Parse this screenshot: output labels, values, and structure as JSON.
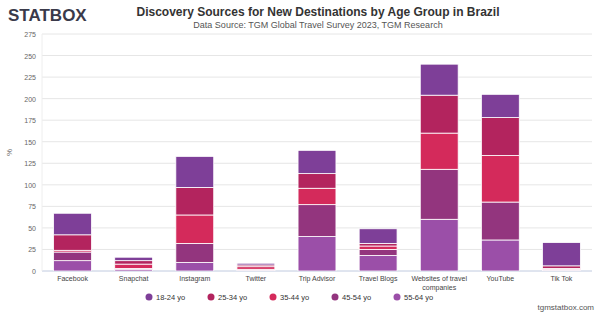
{
  "chart_data": {
    "type": "bar",
    "stacked": true,
    "grid": true,
    "legend": "bottom",
    "title": "Discovery Sources for New Destinations by Age Group in Brazil",
    "subtitle": "Data Source: TGM Global Travel Survey 2023, TGM Research",
    "y_label": "%",
    "categories": [
      "Facebook",
      "Snapchat",
      "Instagram",
      "Twitter",
      "Trip Advisor",
      "Travel Blogs",
      "Websites of travel companies",
      "YouTube",
      "Tik Tok"
    ],
    "ylim": [
      0,
      275
    ],
    "yticks": [
      0,
      25,
      50,
      75,
      100,
      125,
      150,
      175,
      200,
      225,
      250,
      275
    ],
    "series": [
      {
        "name": "18-24 yo",
        "color": "#7e3f98",
        "values": [
          25,
          4,
          36,
          2,
          27,
          17,
          36,
          27,
          27
        ]
      },
      {
        "name": "25-34 yo",
        "color": "#b3245e",
        "values": [
          18,
          4,
          32,
          2,
          17,
          3,
          44,
          44,
          3
        ]
      },
      {
        "name": "35-44 yo",
        "color": "#d42a5b",
        "values": [
          2,
          5,
          33,
          3,
          19,
          4,
          42,
          54,
          1
        ]
      },
      {
        "name": "45-54 yo",
        "color": "#93357e",
        "values": [
          10,
          1,
          22,
          1,
          37,
          7,
          58,
          44,
          1
        ]
      },
      {
        "name": "55-64 yo",
        "color": "#9b4fa8",
        "values": [
          12,
          2,
          10,
          1,
          40,
          18,
          60,
          36,
          1
        ]
      }
    ]
  },
  "branding": {
    "logo": "STATBOX",
    "url": "tgmstatbox.com"
  }
}
